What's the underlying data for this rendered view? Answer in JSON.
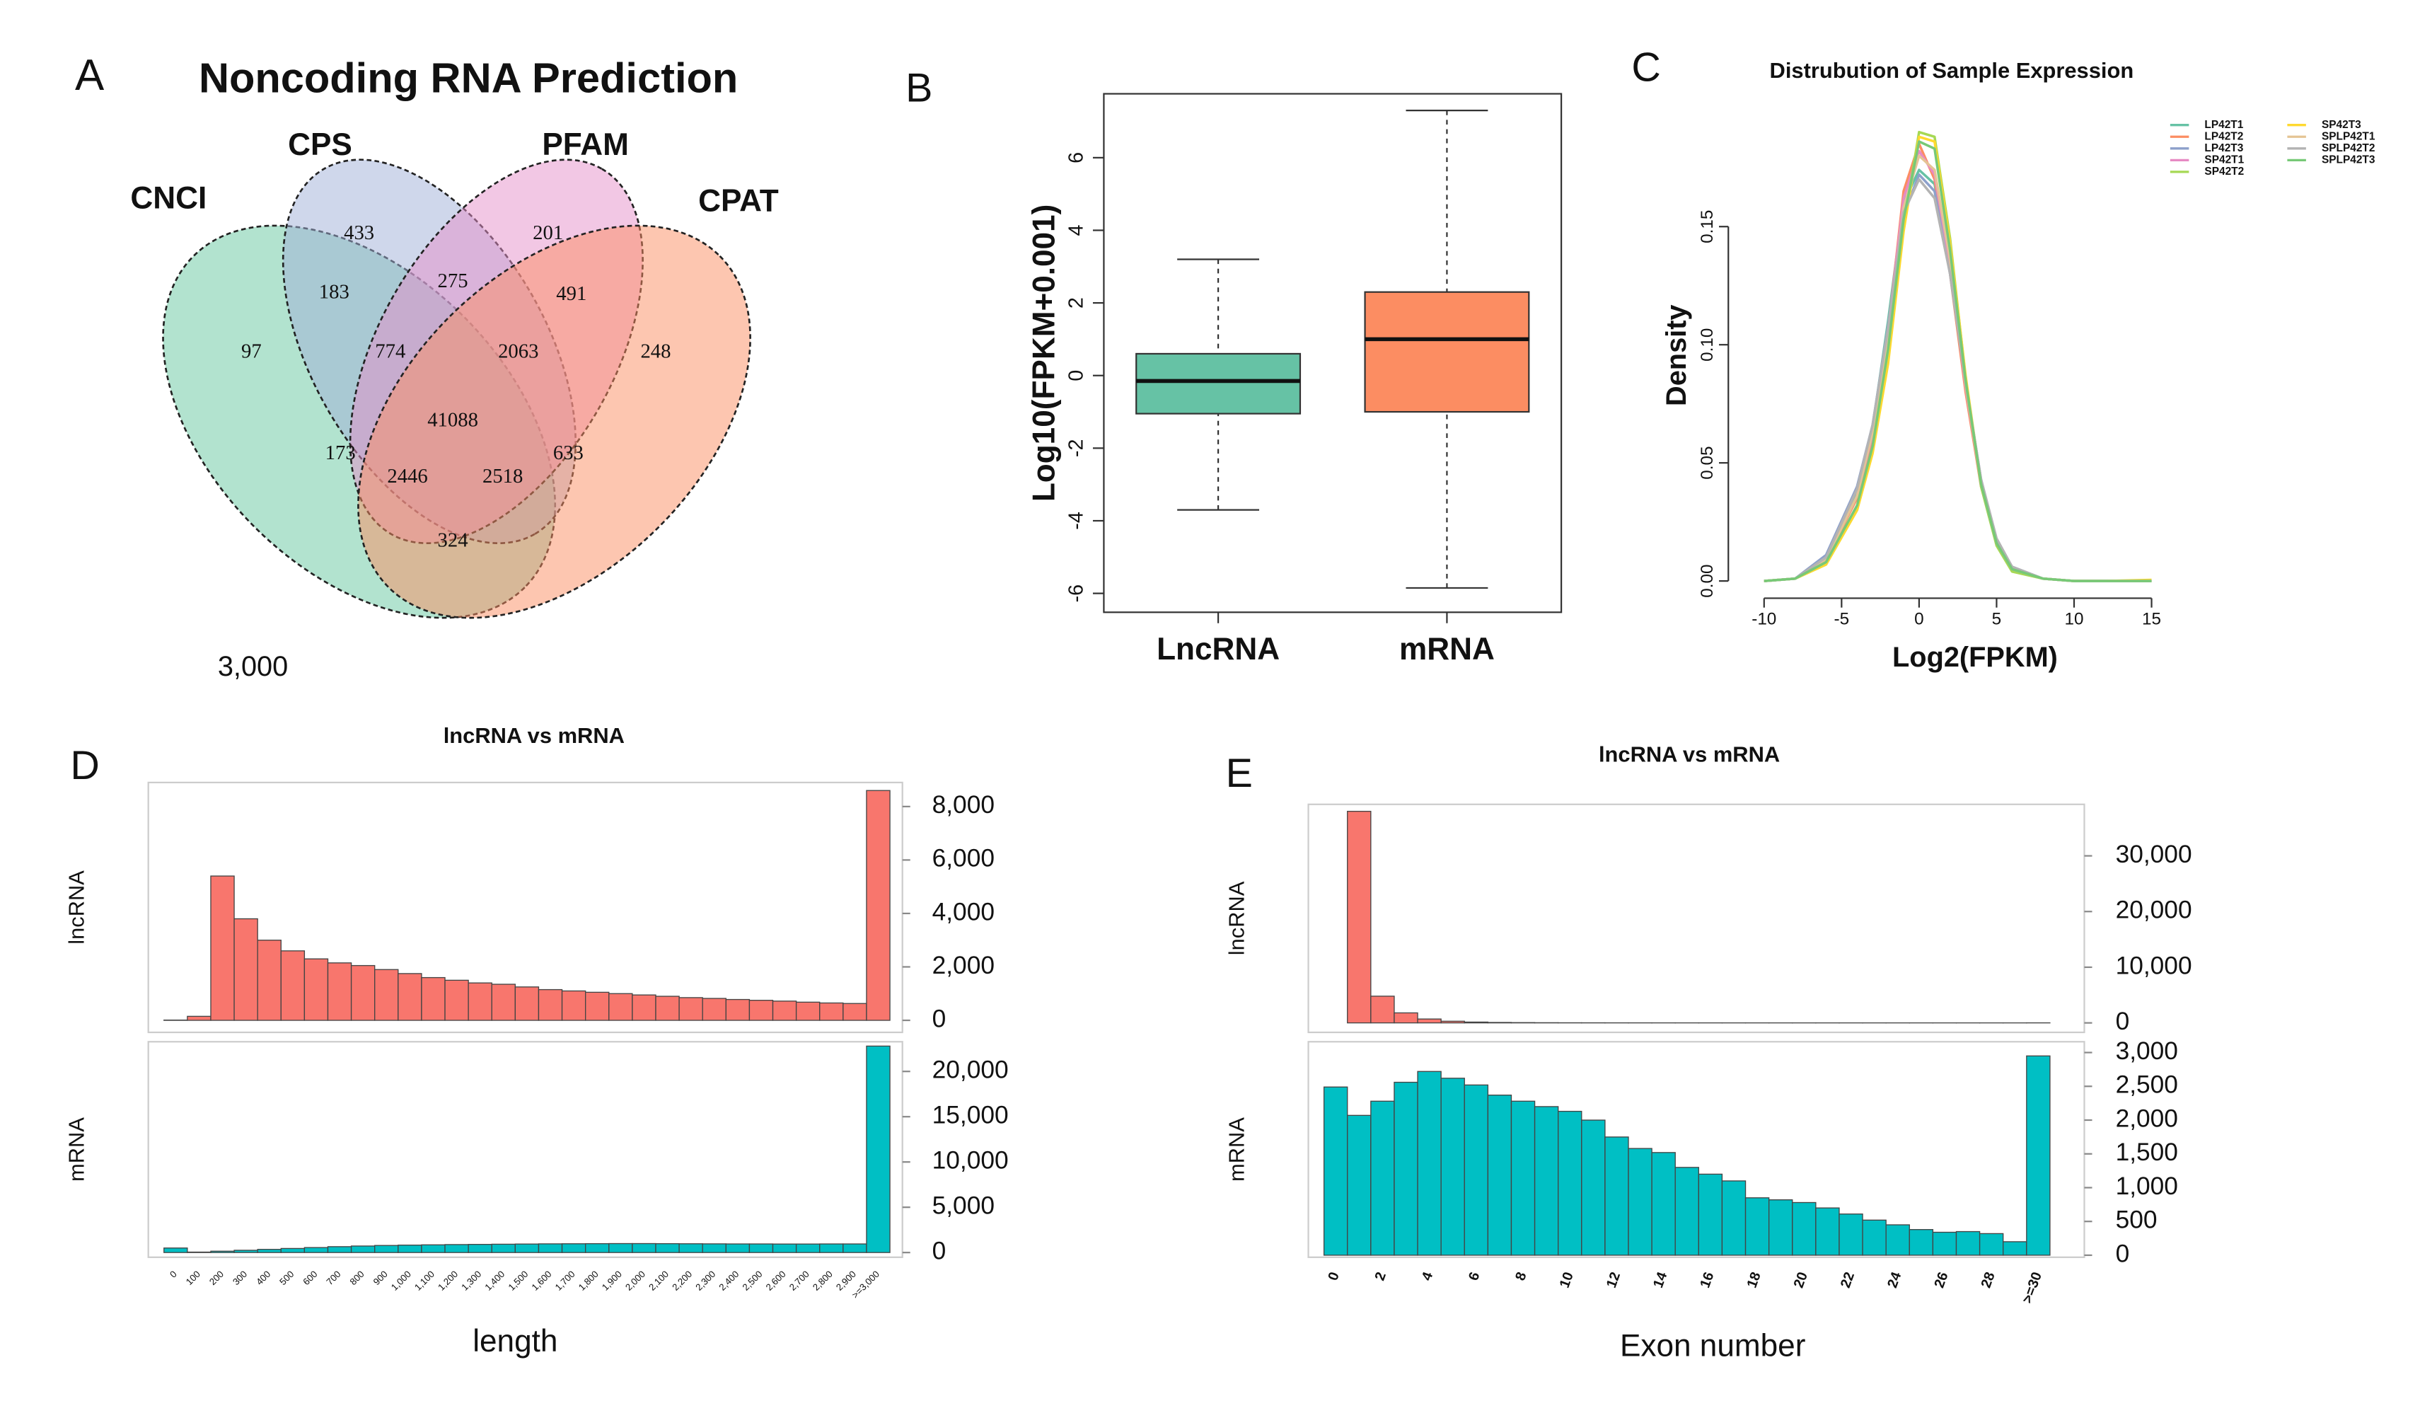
{
  "chart_data": [
    {
      "type": "venn",
      "panel": "A",
      "title": "Noncoding RNA Prediction",
      "sets": [
        {
          "name": "CNCI",
          "color": "#66c7a0"
        },
        {
          "name": "CPS",
          "color": "#9fb0d8"
        },
        {
          "name": "PFAM",
          "color": "#e58fc9"
        },
        {
          "name": "CPAT",
          "color": "#fc8d62"
        }
      ],
      "values": [
        433,
        201,
        183,
        275,
        491,
        97,
        774,
        2063,
        248,
        41088,
        173,
        633,
        2446,
        2518,
        324
      ],
      "annotation": "3,000"
    },
    {
      "type": "box",
      "panel": "B",
      "ylabel": "Log10(FPKM+0.001)",
      "categories": [
        "LncRNA",
        "mRNA"
      ],
      "boxes": [
        {
          "color": "#66c2a5",
          "whisker_low": -3.7,
          "q1": -1.05,
          "median": -0.15,
          "q3": 0.6,
          "whisker_high": 3.2
        },
        {
          "color": "#fc8d62",
          "whisker_low": -5.85,
          "q1": -1.0,
          "median": 1.0,
          "q3": 2.3,
          "whisker_high": 7.3
        }
      ],
      "ylim": [
        -6.52,
        7.76
      ],
      "yticks": [
        -6,
        -4,
        -2,
        0,
        2,
        4,
        6
      ]
    },
    {
      "type": "line",
      "panel": "C",
      "title": "Distrubution of Sample Expression",
      "xlabel": "Log2(FPKM)",
      "ylabel": "Density",
      "x": [
        -10,
        -8,
        -6,
        -4,
        -3,
        -2,
        -1,
        0,
        1,
        2,
        3,
        4,
        5,
        6,
        8,
        10,
        12,
        15
      ],
      "series": [
        {
          "name": "LP42T1",
          "color": "#66c2a5",
          "values": [
            0,
            0.001,
            0.01,
            0.038,
            0.065,
            0.11,
            0.16,
            0.174,
            0.168,
            0.132,
            0.085,
            0.042,
            0.017,
            0.005,
            0.001,
            0,
            0,
            0
          ]
        },
        {
          "name": "LP42T2",
          "color": "#fc8d62",
          "values": [
            0,
            0.001,
            0.009,
            0.035,
            0.06,
            0.105,
            0.165,
            0.185,
            0.17,
            0.13,
            0.08,
            0.04,
            0.016,
            0.005,
            0.001,
            0,
            0,
            0
          ]
        },
        {
          "name": "LP42T3",
          "color": "#8da0cb",
          "values": [
            0,
            0.001,
            0.011,
            0.04,
            0.066,
            0.108,
            0.155,
            0.172,
            0.165,
            0.13,
            0.084,
            0.043,
            0.017,
            0.006,
            0.001,
            0,
            0,
            0
          ]
        },
        {
          "name": "SP42T1",
          "color": "#e78ac3",
          "values": [
            0,
            0.001,
            0.009,
            0.036,
            0.062,
            0.106,
            0.162,
            0.182,
            0.172,
            0.134,
            0.082,
            0.041,
            0.016,
            0.005,
            0.001,
            0,
            0,
            0
          ]
        },
        {
          "name": "SP42T2",
          "color": "#a6d854",
          "values": [
            0,
            0.001,
            0.007,
            0.03,
            0.055,
            0.095,
            0.15,
            0.19,
            0.188,
            0.145,
            0.086,
            0.04,
            0.015,
            0.004,
            0.001,
            0,
            0,
            0
          ]
        },
        {
          "name": "SP42T3",
          "color": "#ffd92f",
          "values": [
            0,
            0.001,
            0.007,
            0.03,
            0.054,
            0.092,
            0.148,
            0.188,
            0.186,
            0.143,
            0.087,
            0.041,
            0.016,
            0.005,
            0.001,
            0,
            0,
            0.0005
          ]
        },
        {
          "name": "SPLP42T1",
          "color": "#e5c494",
          "values": [
            0,
            0.001,
            0.009,
            0.036,
            0.063,
            0.104,
            0.158,
            0.18,
            0.174,
            0.136,
            0.083,
            0.041,
            0.016,
            0.005,
            0.001,
            0,
            0,
            0
          ]
        },
        {
          "name": "SPLP42T2",
          "color": "#b3b3b3",
          "values": [
            0,
            0.001,
            0.01,
            0.039,
            0.066,
            0.107,
            0.156,
            0.17,
            0.162,
            0.13,
            0.084,
            0.043,
            0.018,
            0.006,
            0.001,
            0,
            0,
            0
          ]
        },
        {
          "name": "SPLP42T3",
          "color": "#77c977",
          "values": [
            0,
            0.001,
            0.008,
            0.032,
            0.057,
            0.098,
            0.153,
            0.186,
            0.183,
            0.14,
            0.085,
            0.041,
            0.016,
            0.005,
            0.001,
            0,
            0,
            0
          ]
        }
      ],
      "xlim": [
        -11.5,
        16
      ],
      "xticks": [
        -10,
        -5,
        0,
        5,
        10,
        15
      ],
      "ylim": [
        -0.0053,
        0.1963
      ],
      "yticks": [
        {
          "value": 0,
          "label": "0.00"
        },
        {
          "value": 0.05,
          "label": "0.05"
        },
        {
          "value": 0.1,
          "label": "0.10"
        },
        {
          "value": 0.15,
          "label": "0.15"
        }
      ],
      "legend": "top-right"
    },
    {
      "type": "facet-bar",
      "panel": "D",
      "title": "lncRNA vs mRNA",
      "xlabel": "length",
      "categories": [
        "0",
        "100",
        "200",
        "300",
        "400",
        "500",
        "600",
        "700",
        "800",
        "900",
        "1,000",
        "1,100",
        "1,200",
        "1,300",
        "1,400",
        "1,500",
        "1,600",
        "1,700",
        "1,800",
        "1,900",
        "2,000",
        "2,100",
        "2,200",
        "2,300",
        "2,400",
        "2,500",
        "2,600",
        "2,700",
        "2,800",
        "2,900",
        ">=3,000"
      ],
      "series": [
        {
          "name": "lncRNA",
          "color": "#f8766d",
          "values": [
            10,
            150,
            5400,
            3800,
            3000,
            2600,
            2300,
            2150,
            2050,
            1900,
            1750,
            1600,
            1500,
            1400,
            1350,
            1250,
            1150,
            1100,
            1050,
            1000,
            950,
            900,
            850,
            820,
            780,
            750,
            720,
            680,
            650,
            630,
            8600
          ],
          "ylim": [
            -450,
            8900
          ],
          "yticks": [
            0,
            {
              "value": 2000,
              "label": "2,000"
            },
            {
              "value": 4000,
              "label": "4,000"
            },
            {
              "value": 6000,
              "label": "6,000"
            },
            {
              "value": 8000,
              "label": "8,000"
            }
          ]
        },
        {
          "name": "mRNA",
          "color": "#00bfc4",
          "values": [
            500,
            50,
            150,
            250,
            350,
            450,
            550,
            650,
            720,
            780,
            820,
            850,
            880,
            900,
            920,
            940,
            960,
            970,
            980,
            990,
            990,
            980,
            970,
            960,
            950,
            950,
            940,
            940,
            950,
            950,
            22800
          ],
          "ylim": [
            -520,
            23280
          ],
          "yticks": [
            0,
            {
              "value": 5000,
              "label": "5,000"
            },
            {
              "value": 10000,
              "label": "10,000"
            },
            {
              "value": 15000,
              "label": "15,000"
            },
            {
              "value": 20000,
              "label": "20,000"
            }
          ]
        }
      ]
    },
    {
      "type": "facet-bar",
      "panel": "E",
      "title": "lncRNA vs mRNA",
      "xlabel": "Exon number",
      "categories": [
        "0",
        null,
        "2",
        null,
        "4",
        null,
        "6",
        null,
        "8",
        null,
        "10",
        null,
        "12",
        null,
        "14",
        null,
        "16",
        null,
        "18",
        null,
        "20",
        null,
        "22",
        null,
        "24",
        null,
        "26",
        null,
        "28",
        null,
        ">=30"
      ],
      "series": [
        {
          "name": "lncRNA",
          "color": "#f8766d",
          "values": [
            0,
            38000,
            4800,
            1800,
            700,
            300,
            150,
            80,
            50,
            30,
            20,
            15,
            10,
            8,
            6,
            5,
            4,
            3,
            3,
            2,
            2,
            2,
            1,
            1,
            1,
            1,
            1,
            1,
            1,
            1,
            10
          ],
          "ylim": [
            -1700,
            39250
          ],
          "yticks": [
            0,
            {
              "value": 10000,
              "label": "10,000"
            },
            {
              "value": 20000,
              "label": "20,000"
            },
            {
              "value": 30000,
              "label": "30,000"
            }
          ]
        },
        {
          "name": "mRNA",
          "color": "#00bfc4",
          "values": [
            2490,
            2070,
            2280,
            2560,
            2720,
            2620,
            2520,
            2370,
            2280,
            2200,
            2130,
            2000,
            1750,
            1580,
            1520,
            1300,
            1200,
            1100,
            850,
            820,
            780,
            700,
            610,
            520,
            450,
            380,
            340,
            350,
            320,
            200,
            2950
          ],
          "ylim": [
            -30,
            3160
          ],
          "yticks": [
            0,
            500,
            {
              "value": 1000,
              "label": "1,000"
            },
            {
              "value": 1500,
              "label": "1,500"
            },
            {
              "value": 2000,
              "label": "2,000"
            },
            {
              "value": 2500,
              "label": "2,500"
            },
            {
              "value": 3000,
              "label": "3,000"
            }
          ]
        }
      ]
    }
  ]
}
